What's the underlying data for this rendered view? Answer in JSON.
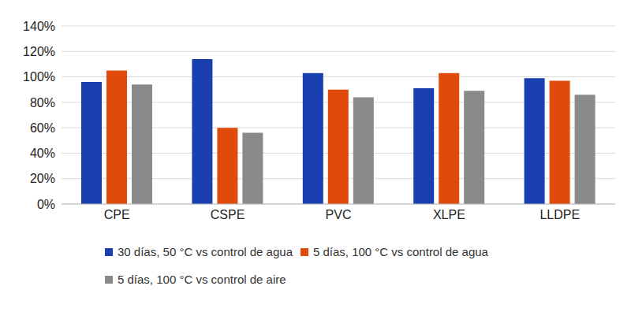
{
  "chart_data": {
    "type": "bar",
    "categories": [
      "CPE",
      "CSPE",
      "PVC",
      "XLPE",
      "LLDPE"
    ],
    "series": [
      {
        "name": "30 días, 50 °C vs control de agua",
        "color": "#1a3fb0",
        "values": [
          96,
          114,
          103,
          91,
          99
        ]
      },
      {
        "name": "5 días, 100 °C vs control de agua",
        "color": "#e04b0b",
        "values": [
          105,
          60,
          90,
          103,
          97
        ]
      },
      {
        "name": "5 días, 100 °C vs control de aire",
        "color": "#8a8a8a",
        "values": [
          94,
          56,
          84,
          89,
          86
        ]
      }
    ],
    "ylim": [
      0,
      140
    ],
    "yticks": [
      {
        "value": 0,
        "label": "0%"
      },
      {
        "value": 20,
        "label": "20%"
      },
      {
        "value": 40,
        "label": "40%"
      },
      {
        "value": 60,
        "label": "60%"
      },
      {
        "value": 80,
        "label": "80%"
      },
      {
        "value": 100,
        "label": "100%"
      },
      {
        "value": 120,
        "label": "120%"
      },
      {
        "value": 140,
        "label": "140%"
      }
    ],
    "grid": true,
    "legend": "bottom"
  }
}
